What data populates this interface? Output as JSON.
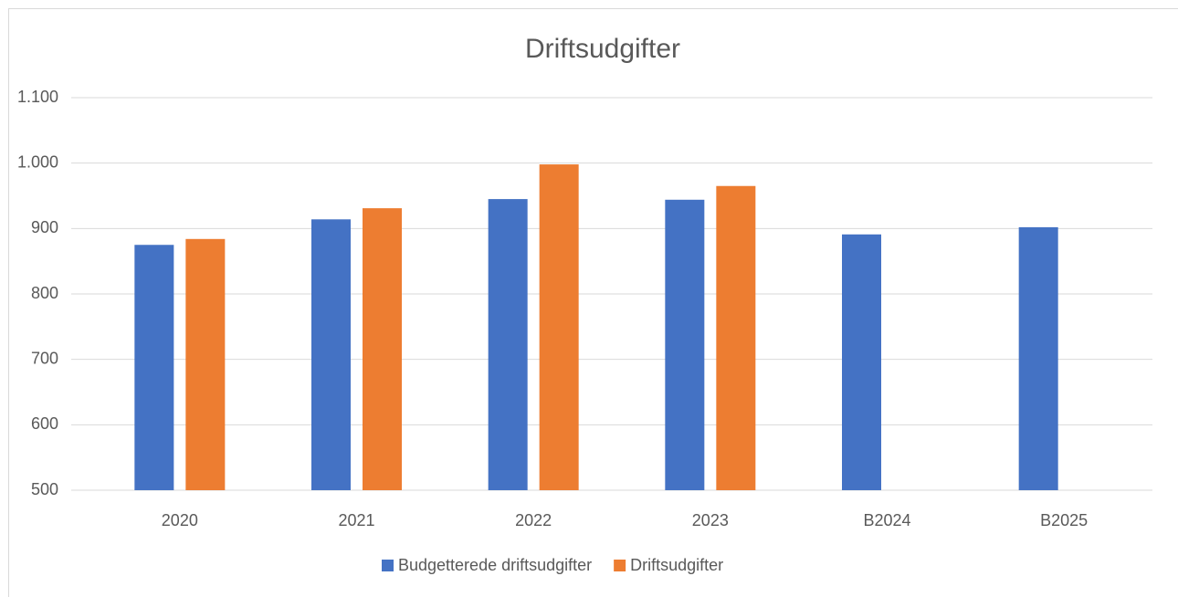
{
  "chart_data": {
    "type": "bar",
    "title": "Driftsudgifter",
    "categories": [
      "2020",
      "2021",
      "2022",
      "2023",
      "B2024",
      "B2025"
    ],
    "series": [
      {
        "name": "Budgetterede driftsudgifter",
        "color": "#4472c4",
        "values": [
          875,
          914,
          945,
          944,
          891,
          902
        ]
      },
      {
        "name": "Driftsudgifter",
        "color": "#ed7d31",
        "values": [
          884,
          931,
          998,
          965,
          null,
          null
        ]
      }
    ],
    "ylim": [
      500,
      1100
    ],
    "yticks": [
      500,
      600,
      700,
      800,
      900,
      {
        "value": 1000,
        "label": "1.000"
      },
      {
        "value": 1100,
        "label": "1.100"
      }
    ],
    "grid": true,
    "legend": "bottom"
  }
}
